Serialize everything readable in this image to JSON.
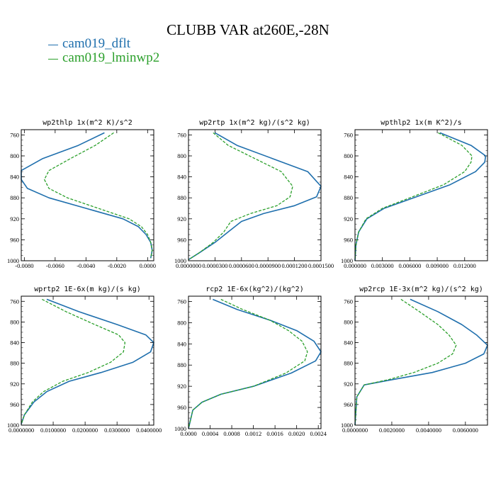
{
  "title": "CLUBB VAR at260E,-28N",
  "colors": {
    "dflt": "#1f6fad",
    "lminwp2": "#2ca02c"
  },
  "legend": [
    {
      "name": "cam019_dflt",
      "color": "#1f6fad"
    },
    {
      "name": "cam019_lminwp2",
      "color": "#2ca02c"
    }
  ],
  "chart_data": [
    {
      "type": "line",
      "title": "wp2thlp  1x(m^2 K)/s^2",
      "xlim": [
        -0.0082,
        0.0004
      ],
      "ylim": [
        1000,
        750
      ],
      "xticks": [
        "-0.0080",
        "-0.0060",
        "-0.0040",
        "-0.0020",
        "0.0000"
      ],
      "xtick_values": [
        -0.008,
        -0.006,
        -0.004,
        -0.002,
        0.0
      ],
      "yticks": [
        760,
        800,
        840,
        880,
        920,
        960,
        1000
      ],
      "series": [
        {
          "name": "cam019_dflt",
          "color": "#1f6fad",
          "style": "solid",
          "x": [
            -0.0028,
            -0.0045,
            -0.0068,
            -0.0082,
            -0.0082,
            -0.0078,
            -0.0064,
            -0.004,
            -0.0016,
            -0.0006,
            -0.0001,
            0.0002,
            0.0003,
            0.0002
          ],
          "y": [
            756,
            780,
            805,
            828,
            845,
            862,
            880,
            900,
            920,
            935,
            950,
            965,
            980,
            995
          ]
        },
        {
          "name": "cam019_lminwp2",
          "color": "#2ca02c",
          "style": "dashed",
          "x": [
            -0.0022,
            -0.0034,
            -0.005,
            -0.0064,
            -0.0067,
            -0.0064,
            -0.0052,
            -0.0032,
            -0.0012,
            -0.0004,
            0.0,
            0.0002,
            0.0003,
            0.0002
          ],
          "y": [
            756,
            780,
            805,
            828,
            845,
            862,
            880,
            900,
            920,
            935,
            950,
            965,
            980,
            995
          ]
        }
      ]
    },
    {
      "type": "line",
      "title": "wp2rtp  1x(m^2 kg)/(s^2 kg)",
      "xlim": [
        0.0,
        0.00015
      ],
      "ylim": [
        1000,
        750
      ],
      "xticks": [
        "0.0000000",
        "0.0000300",
        "0.0000600",
        "0.0000900",
        "0.0001200",
        "0.0001500"
      ],
      "xtick_values": [
        0.0,
        3e-05,
        6e-05,
        9e-05,
        0.00012,
        0.00015
      ],
      "yticks": [
        760,
        800,
        840,
        880,
        920,
        960,
        1000
      ],
      "series": [
        {
          "name": "cam019_dflt",
          "color": "#1f6fad",
          "style": "solid",
          "x": [
            3e-05,
            5.5e-05,
            9.5e-05,
            0.000135,
            0.00015,
            0.000145,
            0.00012,
            8.5e-05,
            6e-05,
            4.5e-05,
            3e-05,
            1.2e-05,
            0.0
          ],
          "y": [
            756,
            780,
            805,
            830,
            858,
            878,
            895,
            910,
            925,
            945,
            965,
            985,
            998
          ]
        },
        {
          "name": "cam019_lminwp2",
          "color": "#2ca02c",
          "style": "dashed",
          "x": [
            2.8e-05,
            4.5e-05,
            7.5e-05,
            0.000105,
            0.000118,
            0.000115,
            0.0001,
            7e-05,
            4.8e-05,
            4e-05,
            2.8e-05,
            1.2e-05,
            0.0
          ],
          "y": [
            756,
            780,
            805,
            830,
            858,
            878,
            895,
            910,
            925,
            945,
            965,
            985,
            998
          ]
        }
      ]
    },
    {
      "type": "line",
      "title": "wpthlp2  1x(m K^2)/s",
      "xlim": [
        0.0,
        0.0145
      ],
      "ylim": [
        1000,
        750
      ],
      "xticks": [
        "0.000000",
        "0.003000",
        "0.006000",
        "0.009000",
        "0.012000"
      ],
      "xtick_values": [
        0.0,
        0.003,
        0.006,
        0.009,
        0.012
      ],
      "yticks": [
        760,
        800,
        840,
        880,
        920,
        960,
        1000
      ],
      "series": [
        {
          "name": "cam019_dflt",
          "color": "#1f6fad",
          "style": "solid",
          "x": [
            0.0093,
            0.0127,
            0.0143,
            0.0142,
            0.0132,
            0.0104,
            0.0064,
            0.0032,
            0.0013,
            0.0004,
            0.0001,
            0.0
          ],
          "y": [
            756,
            780,
            800,
            812,
            830,
            855,
            880,
            900,
            920,
            945,
            970,
            1000
          ]
        },
        {
          "name": "cam019_lminwp2",
          "color": "#2ca02c",
          "style": "dashed",
          "x": [
            0.0091,
            0.0117,
            0.0128,
            0.0127,
            0.012,
            0.0097,
            0.006,
            0.003,
            0.0012,
            0.0004,
            0.0001,
            0.0
          ],
          "y": [
            756,
            780,
            800,
            812,
            830,
            855,
            880,
            900,
            920,
            945,
            970,
            1000
          ]
        }
      ]
    },
    {
      "type": "line",
      "title": "wprtp2  1E-6x(m kg)/(s kg)",
      "xlim": [
        0.0,
        0.0415
      ],
      "ylim": [
        1000,
        750
      ],
      "xticks": [
        "0.0000000",
        "0.0100000",
        "0.0200000",
        "0.0300000",
        "0.0400000"
      ],
      "xtick_values": [
        0.0,
        0.01,
        0.02,
        0.03,
        0.04
      ],
      "yticks": [
        760,
        800,
        840,
        880,
        920,
        960,
        1000
      ],
      "series": [
        {
          "name": "cam019_dflt",
          "color": "#1f6fad",
          "style": "solid",
          "x": [
            0.008,
            0.018,
            0.03,
            0.039,
            0.0415,
            0.0405,
            0.035,
            0.025,
            0.015,
            0.008,
            0.004,
            0.001,
            0.0
          ],
          "y": [
            756,
            780,
            805,
            825,
            840,
            858,
            878,
            898,
            915,
            935,
            955,
            980,
            998
          ]
        },
        {
          "name": "cam019_lminwp2",
          "color": "#2ca02c",
          "style": "dashed",
          "x": [
            0.0065,
            0.014,
            0.023,
            0.0305,
            0.0325,
            0.032,
            0.028,
            0.021,
            0.013,
            0.007,
            0.0035,
            0.001,
            0.0
          ],
          "y": [
            756,
            780,
            805,
            825,
            840,
            858,
            878,
            898,
            915,
            935,
            955,
            980,
            998
          ]
        }
      ]
    },
    {
      "type": "line",
      "title": "rcp2  1E-6x(kg^2)/(kg^2)",
      "xlim": [
        0.0,
        0.00245
      ],
      "ylim": [
        1000,
        750
      ],
      "xticks": [
        "0.0000",
        "0.0004",
        "0.0008",
        "0.0012",
        "0.0016",
        "0.0020",
        "0.0024"
      ],
      "xtick_values": [
        0.0,
        0.0004,
        0.0008,
        0.0012,
        0.0016,
        0.002,
        0.0024
      ],
      "yticks": [
        760,
        800,
        840,
        880,
        920,
        960,
        1000
      ],
      "series": [
        {
          "name": "cam019_dflt",
          "color": "#1f6fad",
          "style": "solid",
          "x": [
            0.00045,
            0.0009,
            0.0015,
            0.002,
            0.00232,
            0.00245,
            0.00235,
            0.0019,
            0.0012,
            0.0006,
            0.00025,
            8e-05,
            0.0
          ],
          "y": [
            756,
            775,
            795,
            815,
            835,
            855,
            872,
            895,
            920,
            935,
            950,
            965,
            1000
          ]
        },
        {
          "name": "cam019_lminwp2",
          "color": "#2ca02c",
          "style": "dashed",
          "x": [
            0.0006,
            0.001,
            0.0015,
            0.00185,
            0.0021,
            0.0022,
            0.00215,
            0.0018,
            0.0012,
            0.0006,
            0.00025,
            8e-05,
            0.0
          ],
          "y": [
            756,
            775,
            795,
            815,
            835,
            855,
            872,
            895,
            920,
            935,
            950,
            965,
            1000
          ]
        }
      ]
    },
    {
      "type": "line",
      "title": "wp2rcp  1E-3x(m^2 kg)/(s^2 kg)",
      "xlim": [
        0.0,
        0.0072
      ],
      "ylim": [
        1000,
        750
      ],
      "xticks": [
        "0.0000000",
        "0.0020000",
        "0.0040000",
        "0.0060000"
      ],
      "xtick_values": [
        0.0,
        0.002,
        0.004,
        0.006
      ],
      "yticks": [
        760,
        800,
        840,
        880,
        920,
        960,
        1000
      ],
      "series": [
        {
          "name": "cam019_dflt",
          "color": "#1f6fad",
          "style": "solid",
          "x": [
            0.003,
            0.0045,
            0.0058,
            0.0066,
            0.0072,
            0.007,
            0.006,
            0.0042,
            0.002,
            0.0005,
            0.0001,
            0.0
          ],
          "y": [
            756,
            780,
            805,
            825,
            845,
            862,
            880,
            898,
            912,
            922,
            945,
            1000
          ]
        },
        {
          "name": "cam019_lminwp2",
          "color": "#2ca02c",
          "style": "dashed",
          "x": [
            0.0025,
            0.0035,
            0.0045,
            0.0051,
            0.0055,
            0.0053,
            0.0045,
            0.0032,
            0.0018,
            0.0005,
            0.0001,
            0.0
          ],
          "y": [
            756,
            780,
            805,
            825,
            845,
            862,
            880,
            898,
            912,
            922,
            945,
            1000
          ]
        }
      ]
    }
  ]
}
